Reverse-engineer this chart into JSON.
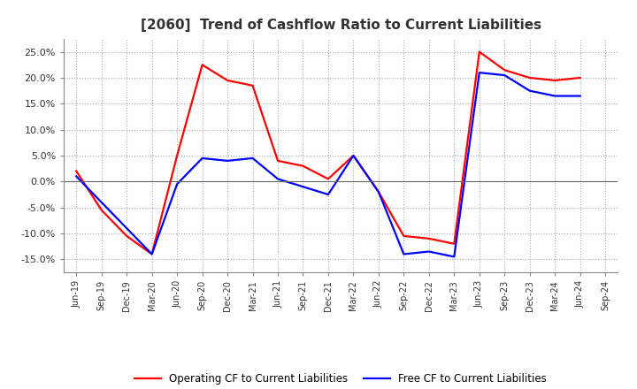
{
  "title": "[2060]  Trend of Cashflow Ratio to Current Liabilities",
  "title_fontsize": 11,
  "ylim": [
    -0.175,
    0.275
  ],
  "yticks": [
    -0.15,
    -0.1,
    -0.05,
    0.0,
    0.05,
    0.1,
    0.15,
    0.2,
    0.25
  ],
  "x_labels": [
    "Jun-19",
    "Sep-19",
    "Dec-19",
    "Mar-20",
    "Jun-20",
    "Sep-20",
    "Dec-20",
    "Mar-21",
    "Jun-21",
    "Sep-21",
    "Dec-21",
    "Mar-22",
    "Jun-22",
    "Sep-22",
    "Dec-22",
    "Mar-23",
    "Jun-23",
    "Sep-23",
    "Dec-23",
    "Mar-24",
    "Jun-24",
    "Sep-24"
  ],
  "operating_cf": [
    0.02,
    -0.055,
    -0.105,
    -0.14,
    0.05,
    0.225,
    0.195,
    0.185,
    0.04,
    0.03,
    0.005,
    0.05,
    -0.02,
    -0.105,
    -0.11,
    -0.12,
    0.25,
    0.215,
    0.2,
    0.195,
    0.2,
    null
  ],
  "free_cf": [
    0.01,
    -0.04,
    -0.09,
    -0.14,
    -0.005,
    0.045,
    0.04,
    0.045,
    0.005,
    -0.01,
    -0.025,
    0.05,
    -0.02,
    -0.14,
    -0.135,
    -0.145,
    0.21,
    0.205,
    0.175,
    0.165,
    0.165,
    null
  ],
  "operating_color": "#ff0000",
  "free_color": "#0000ff",
  "line_width": 1.6,
  "background_color": "#ffffff",
  "grid_color": "#aaaaaa",
  "zero_line_color": "#666666",
  "legend_operating": "Operating CF to Current Liabilities",
  "legend_free": "Free CF to Current Liabilities"
}
